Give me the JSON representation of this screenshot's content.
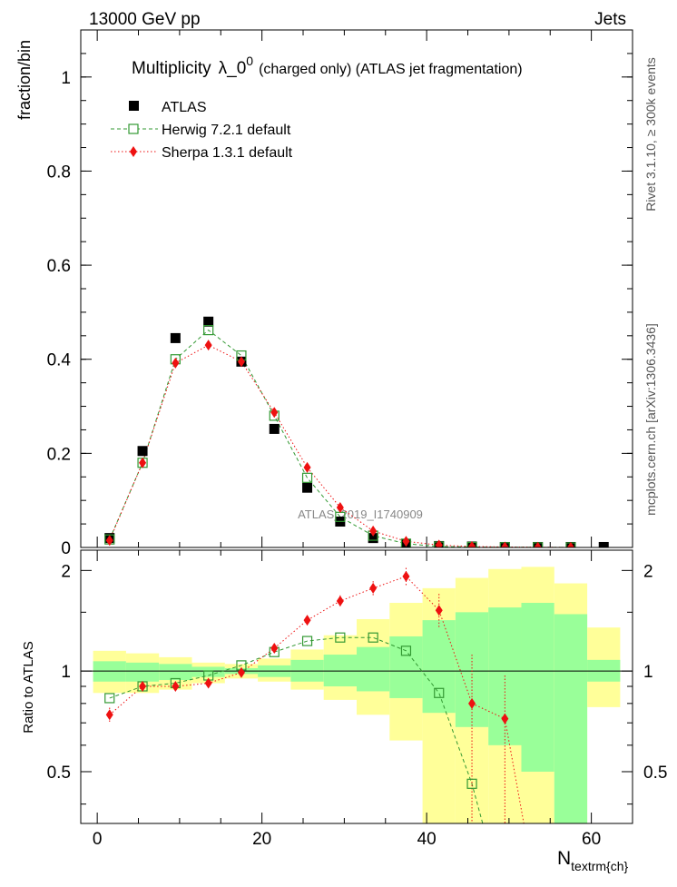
{
  "header": {
    "left": "13000 GeV pp",
    "right": "Jets"
  },
  "side_labels": {
    "rivet": "Rivet 3.1.10, ≥ 300k events",
    "mcplots": "mcplots.cern.ch [arXiv:1306.3436]"
  },
  "watermark": "ATLAS_2019_I1740909",
  "colors": {
    "atlas": "#000000",
    "herwig": "#339933",
    "sherpa": "#ee1111",
    "band_outer": "#ffff99",
    "band_inner": "#99ff99"
  },
  "chart_data": [
    {
      "type": "scatter",
      "panel": "main",
      "title_main": "Multiplicity",
      "title_symbol": "λ_0",
      "title_sup": "0",
      "title_rest": "(charged only) (ATLAS jet fragmentation)",
      "ylabel": "fraction/bin",
      "ylim": [
        0,
        1.1
      ],
      "yticks": [
        0,
        0.2,
        0.4,
        0.6,
        0.8,
        1
      ],
      "ytick_labels": [
        "0",
        "0.2",
        "0.4",
        "0.6",
        "0.8",
        "1"
      ],
      "xlim": [
        -2,
        65
      ],
      "legend_position": "top-left",
      "series": [
        {
          "name": "ATLAS",
          "marker": "filled-square",
          "x": [
            1.5,
            5.5,
            9.5,
            13.5,
            17.5,
            21.5,
            25.5,
            29.5,
            33.5,
            37.5,
            41.5,
            45.5,
            49.5,
            53.5,
            57.5,
            61.5
          ],
          "y": [
            0.02,
            0.205,
            0.445,
            0.48,
            0.395,
            0.252,
            0.127,
            0.055,
            0.02,
            0.007,
            0.003,
            0.002,
            0.001,
            0.001,
            0.001,
            0.001
          ]
        },
        {
          "name": "Herwig 7.2.1 default",
          "marker": "open-square",
          "x": [
            1.5,
            5.5,
            9.5,
            13.5,
            17.5,
            21.5,
            25.5,
            29.5,
            33.5,
            37.5,
            41.5,
            45.5,
            49.5,
            53.5,
            57.5
          ],
          "y": [
            0.017,
            0.18,
            0.4,
            0.462,
            0.408,
            0.28,
            0.148,
            0.065,
            0.025,
            0.008,
            0.002,
            0.001,
            0.0005,
            0.0003,
            0.0001
          ]
        },
        {
          "name": "Sherpa 1.3.1 default",
          "marker": "diamond",
          "x": [
            1.5,
            5.5,
            9.5,
            13.5,
            17.5,
            21.5,
            25.5,
            29.5,
            33.5,
            37.5,
            41.5,
            45.5,
            49.5,
            53.5,
            57.5
          ],
          "y": [
            0.015,
            0.18,
            0.392,
            0.43,
            0.395,
            0.287,
            0.17,
            0.085,
            0.035,
            0.013,
            0.005,
            0.002,
            0.001,
            0.0005,
            0.0002
          ]
        }
      ]
    },
    {
      "type": "line",
      "panel": "ratio",
      "ylabel": "Ratio to ATLAS",
      "xlabel_main": "N",
      "xlabel_sub": "textrm{ch}",
      "ylim": [
        0.35,
        2.3
      ],
      "yticks": [
        0.5,
        1,
        2
      ],
      "ytick_labels": [
        "0.5",
        "1",
        "2"
      ],
      "xlim": [
        -2,
        65
      ],
      "xticks": [
        0,
        20,
        40,
        60
      ],
      "xtick_labels": [
        "0",
        "20",
        "40",
        "60"
      ],
      "bands": {
        "edges": [
          -0.5,
          3.5,
          7.5,
          11.5,
          15.5,
          19.5,
          23.5,
          27.5,
          31.5,
          35.5,
          39.5,
          43.5,
          47.5,
          51.5,
          55.5,
          59.5,
          63.5
        ],
        "outer_lo": [
          0.86,
          0.86,
          0.88,
          0.92,
          0.95,
          0.93,
          0.88,
          0.82,
          0.74,
          0.62,
          0.35,
          0.35,
          0.35,
          0.35,
          0.35,
          0.78
        ],
        "outer_hi": [
          1.15,
          1.13,
          1.1,
          1.06,
          1.05,
          1.09,
          1.16,
          1.28,
          1.43,
          1.6,
          1.77,
          1.9,
          2.02,
          2.05,
          1.83,
          1.35
        ],
        "inner_lo": [
          0.93,
          0.93,
          0.94,
          0.96,
          0.98,
          0.96,
          0.93,
          0.9,
          0.87,
          0.83,
          0.75,
          0.68,
          0.6,
          0.5,
          0.35,
          0.93
        ],
        "inner_hi": [
          1.07,
          1.06,
          1.05,
          1.03,
          1.02,
          1.04,
          1.08,
          1.12,
          1.18,
          1.27,
          1.42,
          1.5,
          1.55,
          1.6,
          1.48,
          1.08
        ]
      },
      "series": [
        {
          "name": "Herwig 7.2.1 default",
          "x": [
            1.5,
            5.5,
            9.5,
            13.5,
            17.5,
            21.5,
            25.5,
            29.5,
            33.5,
            37.5,
            41.5,
            45.5,
            46.8
          ],
          "y": [
            0.83,
            0.9,
            0.92,
            0.97,
            1.04,
            1.14,
            1.23,
            1.26,
            1.26,
            1.15,
            0.86,
            0.46,
            0.35
          ]
        },
        {
          "name": "Sherpa 1.3.1 default",
          "x": [
            1.5,
            5.5,
            9.5,
            13.5,
            17.5,
            21.5,
            25.5,
            29.5,
            33.5,
            37.5,
            41.5,
            45.5,
            49.5,
            51.8
          ],
          "y": [
            0.74,
            0.9,
            0.9,
            0.92,
            0.99,
            1.17,
            1.42,
            1.62,
            1.77,
            1.92,
            1.52,
            0.8,
            0.72,
            0.35
          ]
        }
      ]
    }
  ]
}
